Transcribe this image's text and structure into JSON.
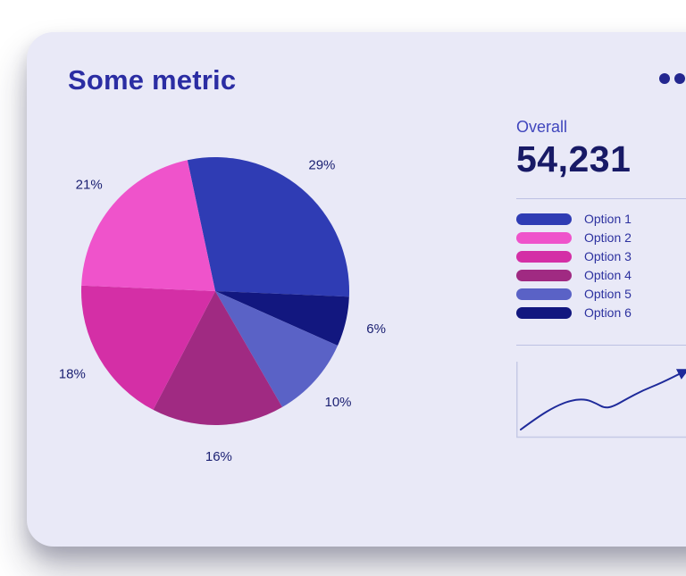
{
  "card": {
    "title": "Some metric",
    "background_color": "#e9e9f7",
    "title_color": "#2b2da3"
  },
  "menu": {
    "icon": "ellipsis-icon"
  },
  "overall": {
    "label": "Overall",
    "value": "54,231"
  },
  "chart_data": [
    {
      "type": "pie",
      "title": "Some metric",
      "labels": [
        "Option 1",
        "Option 2",
        "Option 3",
        "Option 4",
        "Option 5",
        "Option 6"
      ],
      "values": [
        29,
        21,
        18,
        16,
        10,
        6
      ],
      "unit": "%",
      "data_labels": [
        "29%",
        "21%",
        "18%",
        "16%",
        "10%",
        "6%"
      ],
      "colors": [
        "#2f3cb4",
        "#ef53cb",
        "#d42fa6",
        "#a02a82",
        "#5a62c6",
        "#12177f"
      ],
      "label_color": "#1c2173",
      "legend_position": "right",
      "clockwise_from_top": [
        0,
        5,
        4,
        3,
        2,
        1
      ],
      "start_angle_deg": -102
    },
    {
      "type": "line",
      "name": "trend-sparkline",
      "color": "#1e2a9a",
      "axes_color": "#c6cae6",
      "arrow_end": true,
      "points": [
        [
          5,
          78
        ],
        [
          24,
          64
        ],
        [
          44,
          52
        ],
        [
          62,
          45
        ],
        [
          78,
          44
        ],
        [
          90,
          49
        ],
        [
          99,
          54
        ],
        [
          109,
          52
        ],
        [
          123,
          44
        ],
        [
          142,
          34
        ],
        [
          162,
          26
        ],
        [
          190,
          12
        ]
      ]
    }
  ]
}
